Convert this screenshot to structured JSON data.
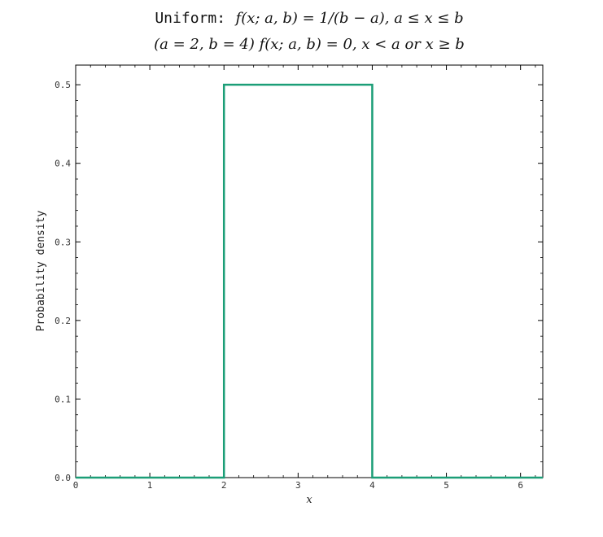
{
  "chart_data": {
    "type": "line",
    "title": {
      "line1_prefix": "Uniform:",
      "line1_formula": "f(x; a, b) = 1/(b − a),  a ≤ x ≤ b",
      "line2": "(a = 2, b = 4)   f(x; a, b) = 0,   x < a or x ≥ b"
    },
    "xlabel": "x",
    "ylabel": "Probability density",
    "xlim": [
      0,
      6.3
    ],
    "ylim": [
      0,
      0.525
    ],
    "xticks": [
      0,
      1,
      2,
      3,
      4,
      5,
      6
    ],
    "xtick_labels": [
      "0",
      "1",
      "2",
      "3",
      "4",
      "5",
      "6"
    ],
    "yticks": [
      0,
      0.1,
      0.2,
      0.3,
      0.4,
      0.5
    ],
    "ytick_labels": [
      "0.0",
      "0.1",
      "0.2",
      "0.3",
      "0.4",
      "0.5"
    ],
    "grid": false,
    "legend": "none",
    "series": [
      {
        "color": "#1b9e77",
        "x": [
          0,
          2,
          2,
          4,
          4,
          6.3
        ],
        "y": [
          0,
          0,
          0.5,
          0.5,
          0,
          0
        ]
      }
    ]
  }
}
